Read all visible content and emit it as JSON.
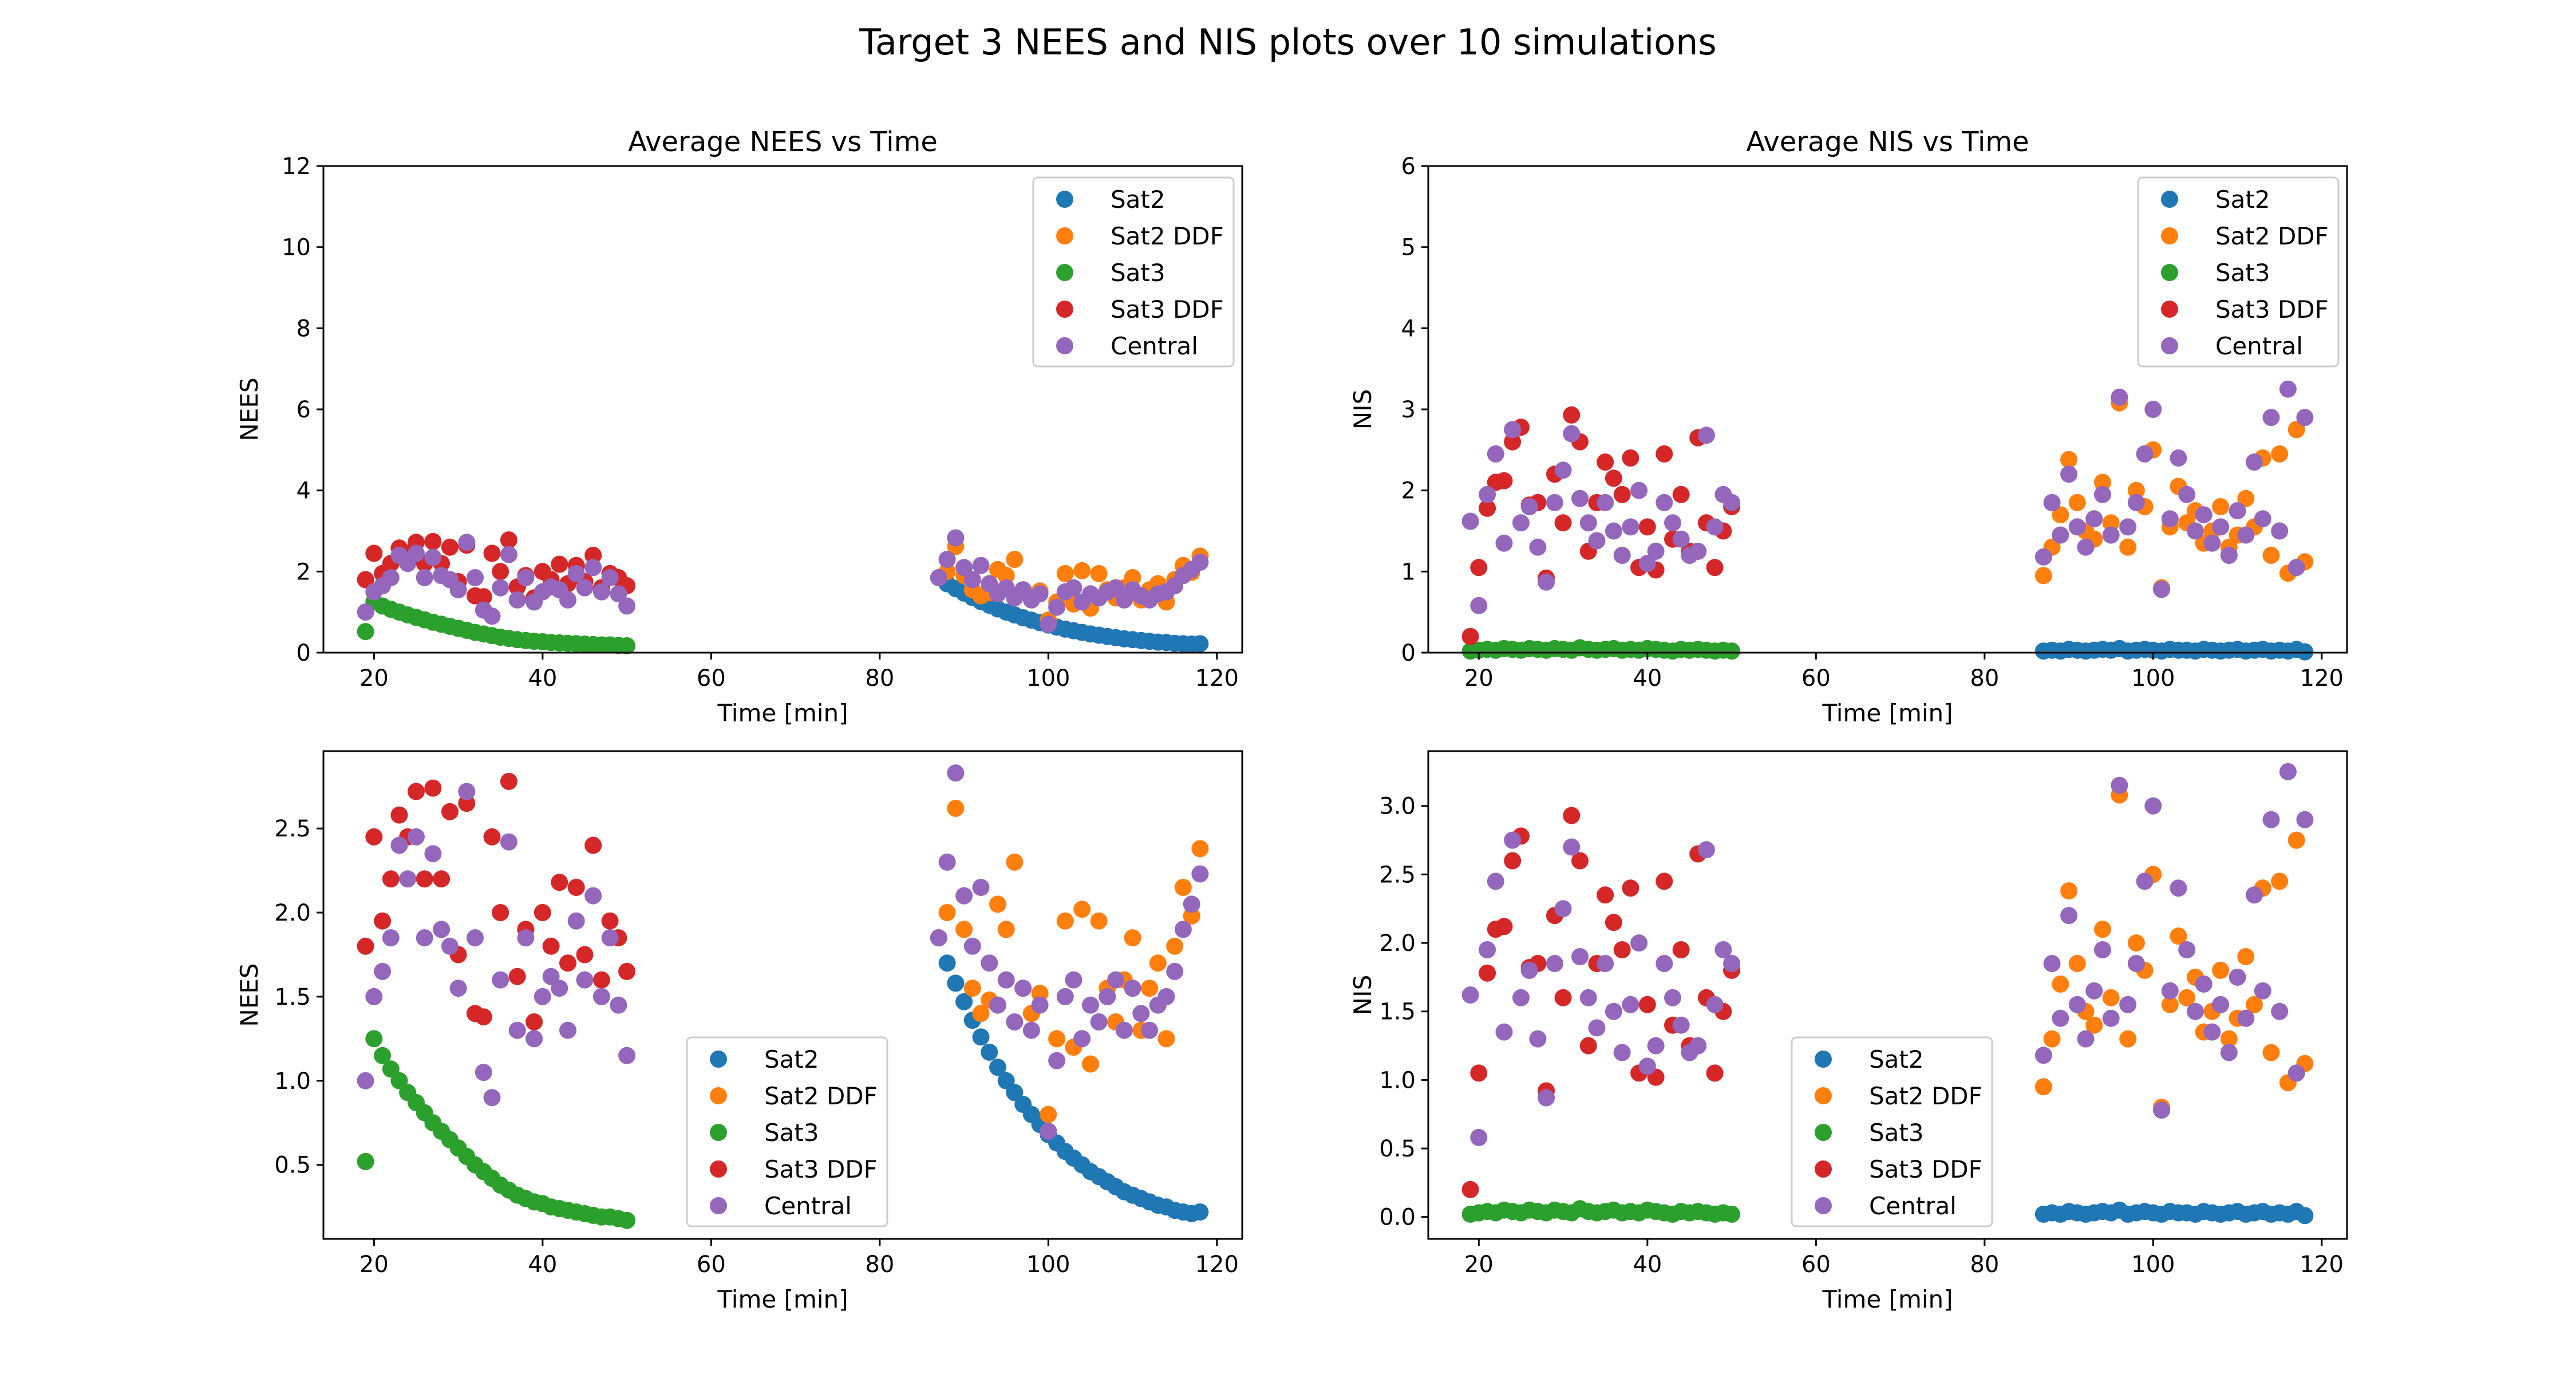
{
  "figure": {
    "suptitle": "Target 3 NEES and NIS plots over 10 simulations"
  },
  "colors": {
    "Sat2": "#1f77b4",
    "Sat2 DDF": "#ff7f0e",
    "Sat3": "#2ca02c",
    "Sat3 DDF": "#d62728",
    "Central": "#9467bd"
  },
  "chart_data": [
    {
      "type": "scatter",
      "title": "Average NEES vs Time",
      "xlabel": "Time [min]",
      "ylabel": "NEES",
      "xlim": [
        14,
        123
      ],
      "ylim": [
        0,
        12
      ],
      "xticks": [
        20,
        40,
        60,
        80,
        100,
        120
      ],
      "yticks": [
        0,
        2,
        4,
        6,
        8,
        10,
        12
      ],
      "legend": "top-right",
      "metric": "nees"
    },
    {
      "type": "scatter",
      "title": "Average NIS vs Time",
      "xlabel": "Time [min]",
      "ylabel": "NIS",
      "xlim": [
        14,
        123
      ],
      "ylim": [
        0,
        6
      ],
      "xticks": [
        20,
        40,
        60,
        80,
        100,
        120
      ],
      "yticks": [
        0,
        1,
        2,
        3,
        4,
        5,
        6
      ],
      "legend": "top-right",
      "metric": "nis"
    },
    {
      "type": "scatter",
      "title": "",
      "xlabel": "Time [min]",
      "ylabel": "NEES",
      "xlim": [
        14,
        123
      ],
      "ylim": [
        0.06,
        2.96
      ],
      "xticks": [
        20,
        40,
        60,
        80,
        100,
        120
      ],
      "yticks": [
        0.5,
        1.0,
        1.5,
        2.0,
        2.5
      ],
      "ytick_labels": [
        "0.5",
        "1.0",
        "1.5",
        "2.0",
        "2.5"
      ],
      "legend": "lower-center",
      "metric": "nees"
    },
    {
      "type": "scatter",
      "title": "",
      "xlabel": "Time [min]",
      "ylabel": "NIS",
      "xlim": [
        14,
        123
      ],
      "ylim": [
        -0.16,
        3.4
      ],
      "xticks": [
        20,
        40,
        60,
        80,
        100,
        120
      ],
      "yticks": [
        0.0,
        0.5,
        1.0,
        1.5,
        2.0,
        2.5,
        3.0
      ],
      "ytick_labels": [
        "0.0",
        "0.5",
        "1.0",
        "1.5",
        "2.0",
        "2.5",
        "3.0"
      ],
      "legend": "lower-center",
      "metric": "nis"
    }
  ],
  "series": {
    "nees": [
      {
        "name": "Sat2",
        "x": [
          87,
          88,
          89,
          90,
          91,
          92,
          93,
          94,
          95,
          96,
          97,
          98,
          99,
          100,
          101,
          102,
          103,
          104,
          105,
          106,
          107,
          108,
          109,
          110,
          111,
          112,
          113,
          114,
          115,
          116,
          117,
          118
        ],
        "y": [
          1.85,
          1.7,
          1.58,
          1.47,
          1.36,
          1.26,
          1.17,
          1.08,
          1.0,
          0.93,
          0.86,
          0.8,
          0.74,
          0.68,
          0.63,
          0.58,
          0.54,
          0.5,
          0.46,
          0.43,
          0.4,
          0.37,
          0.34,
          0.32,
          0.3,
          0.28,
          0.26,
          0.25,
          0.23,
          0.22,
          0.21,
          0.22
        ]
      },
      {
        "name": "Sat2 DDF",
        "x": [
          87,
          88,
          89,
          90,
          91,
          92,
          93,
          94,
          95,
          96,
          97,
          98,
          99,
          100,
          101,
          102,
          103,
          104,
          105,
          106,
          107,
          108,
          109,
          110,
          111,
          112,
          113,
          114,
          115,
          116,
          117,
          118
        ],
        "y": [
          1.85,
          2.0,
          2.62,
          1.9,
          1.55,
          1.4,
          1.48,
          2.05,
          1.9,
          2.3,
          1.55,
          1.4,
          1.52,
          0.8,
          1.25,
          1.95,
          1.2,
          2.02,
          1.1,
          1.95,
          1.55,
          1.35,
          1.6,
          1.85,
          1.3,
          1.55,
          1.7,
          1.25,
          1.8,
          2.15,
          1.98,
          2.38
        ]
      },
      {
        "name": "Sat3",
        "x": [
          19,
          20,
          21,
          22,
          23,
          24,
          25,
          26,
          27,
          28,
          29,
          30,
          31,
          32,
          33,
          34,
          35,
          36,
          37,
          38,
          39,
          40,
          41,
          42,
          43,
          44,
          45,
          46,
          47,
          48,
          49,
          50
        ],
        "y": [
          0.52,
          1.25,
          1.15,
          1.07,
          1.0,
          0.93,
          0.87,
          0.81,
          0.75,
          0.7,
          0.65,
          0.6,
          0.55,
          0.5,
          0.46,
          0.42,
          0.38,
          0.35,
          0.32,
          0.3,
          0.28,
          0.27,
          0.25,
          0.24,
          0.23,
          0.22,
          0.21,
          0.2,
          0.19,
          0.19,
          0.18,
          0.17
        ]
      },
      {
        "name": "Sat3 DDF",
        "x": [
          19,
          20,
          21,
          22,
          23,
          24,
          25,
          26,
          27,
          28,
          29,
          30,
          31,
          32,
          33,
          34,
          35,
          36,
          37,
          38,
          39,
          40,
          41,
          42,
          43,
          44,
          45,
          46,
          47,
          48,
          49,
          50
        ],
        "y": [
          1.8,
          2.45,
          1.95,
          2.2,
          2.58,
          2.45,
          2.72,
          2.2,
          2.74,
          2.2,
          2.6,
          1.75,
          2.65,
          1.4,
          1.38,
          2.45,
          2.0,
          2.78,
          1.62,
          1.9,
          1.35,
          2.0,
          1.8,
          2.18,
          1.7,
          2.15,
          1.75,
          2.4,
          1.6,
          1.95,
          1.85,
          1.65
        ]
      },
      {
        "name": "Central",
        "x": [
          19,
          20,
          21,
          22,
          23,
          24,
          25,
          26,
          27,
          28,
          29,
          30,
          31,
          32,
          33,
          34,
          35,
          36,
          37,
          38,
          39,
          40,
          41,
          42,
          43,
          44,
          45,
          46,
          47,
          48,
          49,
          50,
          87,
          88,
          89,
          90,
          91,
          92,
          93,
          94,
          95,
          96,
          97,
          98,
          99,
          100,
          101,
          102,
          103,
          104,
          105,
          106,
          107,
          108,
          109,
          110,
          111,
          112,
          113,
          114,
          115,
          116,
          117,
          118
        ],
        "y": [
          1.0,
          1.5,
          1.65,
          1.85,
          2.4,
          2.2,
          2.45,
          1.85,
          2.35,
          1.9,
          1.8,
          1.55,
          2.72,
          1.85,
          1.05,
          0.9,
          1.6,
          2.42,
          1.3,
          1.85,
          1.25,
          1.5,
          1.62,
          1.55,
          1.3,
          1.95,
          1.6,
          2.1,
          1.5,
          1.85,
          1.45,
          1.15,
          1.85,
          2.3,
          2.83,
          2.1,
          1.8,
          2.15,
          1.7,
          1.45,
          1.6,
          1.35,
          1.55,
          1.3,
          1.45,
          0.7,
          1.12,
          1.5,
          1.6,
          1.25,
          1.45,
          1.35,
          1.5,
          1.6,
          1.3,
          1.55,
          1.4,
          1.3,
          1.45,
          1.5,
          1.65,
          1.9,
          2.05,
          2.23
        ]
      }
    ],
    "nis": [
      {
        "name": "Sat2",
        "x": [
          87,
          88,
          89,
          90,
          91,
          92,
          93,
          94,
          95,
          96,
          97,
          98,
          99,
          100,
          101,
          102,
          103,
          104,
          105,
          106,
          107,
          108,
          109,
          110,
          111,
          112,
          113,
          114,
          115,
          116,
          117,
          118
        ],
        "y": [
          0.02,
          0.03,
          0.02,
          0.04,
          0.03,
          0.02,
          0.03,
          0.04,
          0.03,
          0.05,
          0.02,
          0.03,
          0.04,
          0.03,
          0.02,
          0.04,
          0.03,
          0.03,
          0.02,
          0.04,
          0.03,
          0.02,
          0.03,
          0.04,
          0.02,
          0.03,
          0.04,
          0.02,
          0.03,
          0.02,
          0.04,
          0.01
        ]
      },
      {
        "name": "Sat2 DDF",
        "x": [
          87,
          88,
          89,
          90,
          91,
          92,
          93,
          94,
          95,
          96,
          97,
          98,
          99,
          100,
          101,
          102,
          103,
          104,
          105,
          106,
          107,
          108,
          109,
          110,
          111,
          112,
          113,
          114,
          115,
          116,
          117,
          118
        ],
        "y": [
          0.95,
          1.3,
          1.7,
          2.38,
          1.85,
          1.5,
          1.4,
          2.1,
          1.6,
          3.08,
          1.3,
          2.0,
          1.8,
          2.5,
          0.8,
          1.55,
          2.05,
          1.6,
          1.75,
          1.35,
          1.5,
          1.8,
          1.3,
          1.45,
          1.9,
          1.55,
          2.4,
          1.2,
          2.45,
          0.98,
          2.75,
          1.12
        ]
      },
      {
        "name": "Sat3",
        "x": [
          19,
          20,
          21,
          22,
          23,
          24,
          25,
          26,
          27,
          28,
          29,
          30,
          31,
          32,
          33,
          34,
          35,
          36,
          37,
          38,
          39,
          40,
          41,
          42,
          43,
          44,
          45,
          46,
          47,
          48,
          49,
          50
        ],
        "y": [
          0.02,
          0.03,
          0.04,
          0.03,
          0.05,
          0.04,
          0.03,
          0.05,
          0.04,
          0.03,
          0.05,
          0.04,
          0.03,
          0.06,
          0.04,
          0.03,
          0.04,
          0.05,
          0.03,
          0.04,
          0.03,
          0.05,
          0.04,
          0.03,
          0.02,
          0.04,
          0.03,
          0.04,
          0.03,
          0.02,
          0.03,
          0.02
        ]
      },
      {
        "name": "Sat3 DDF",
        "x": [
          19,
          20,
          21,
          22,
          23,
          24,
          25,
          26,
          27,
          28,
          29,
          30,
          31,
          32,
          33,
          34,
          35,
          36,
          37,
          38,
          39,
          40,
          41,
          42,
          43,
          44,
          45,
          46,
          47,
          48,
          49,
          50
        ],
        "y": [
          0.2,
          1.05,
          1.78,
          2.1,
          2.12,
          2.6,
          2.78,
          1.82,
          1.85,
          0.92,
          2.2,
          1.6,
          2.93,
          2.6,
          1.25,
          1.85,
          2.35,
          2.15,
          1.95,
          2.4,
          1.05,
          1.55,
          1.02,
          2.45,
          1.4,
          1.95,
          1.25,
          2.65,
          1.6,
          1.05,
          1.5,
          1.8
        ]
      },
      {
        "name": "Central",
        "x": [
          19,
          20,
          21,
          22,
          23,
          24,
          25,
          26,
          27,
          28,
          29,
          30,
          31,
          32,
          33,
          34,
          35,
          36,
          37,
          38,
          39,
          40,
          41,
          42,
          43,
          44,
          45,
          46,
          47,
          48,
          49,
          50,
          87,
          88,
          89,
          90,
          91,
          92,
          93,
          94,
          95,
          96,
          97,
          98,
          99,
          100,
          101,
          102,
          103,
          104,
          105,
          106,
          107,
          108,
          109,
          110,
          111,
          112,
          113,
          114,
          115,
          116,
          117,
          118
        ],
        "y": [
          1.62,
          0.58,
          1.95,
          2.45,
          1.35,
          2.75,
          1.6,
          1.8,
          1.3,
          0.87,
          1.85,
          2.25,
          2.7,
          1.9,
          1.6,
          1.38,
          1.85,
          1.5,
          1.2,
          1.55,
          2.0,
          1.1,
          1.25,
          1.85,
          1.6,
          1.4,
          1.2,
          1.25,
          2.68,
          1.55,
          1.95,
          1.85,
          1.18,
          1.85,
          1.45,
          2.2,
          1.55,
          1.3,
          1.65,
          1.95,
          1.45,
          3.15,
          1.55,
          1.85,
          2.45,
          3.0,
          0.78,
          1.65,
          2.4,
          1.95,
          1.5,
          1.7,
          1.35,
          1.55,
          1.2,
          1.75,
          1.45,
          2.35,
          1.65,
          2.9,
          1.5,
          3.25,
          1.05,
          2.9
        ]
      }
    ]
  },
  "legend_entries": [
    "Sat2",
    "Sat2 DDF",
    "Sat3",
    "Sat3 DDF",
    "Central"
  ]
}
